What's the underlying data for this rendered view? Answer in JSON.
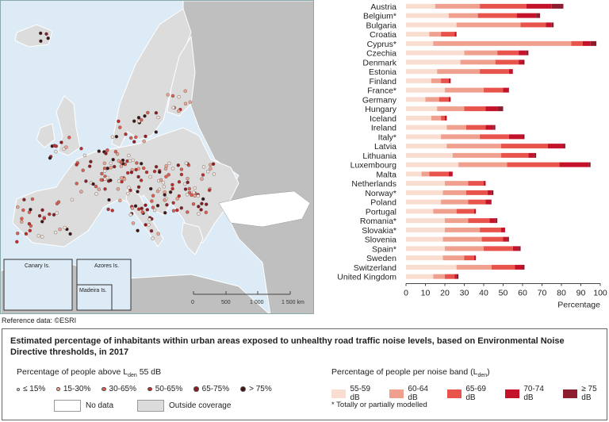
{
  "map": {
    "inset_labels": [
      "Canary Is.",
      "Azores Is.",
      "Madeira Is."
    ],
    "scale_ticks": [
      "0",
      "500",
      "1 000",
      "1 500 km"
    ],
    "reference": "Reference data: ©ESRI",
    "colors": {
      "sea": "#dcebf5",
      "land": "#dcdcdc",
      "outside": "#bfbfbf",
      "nodata": "#ffffff"
    }
  },
  "chart_data": {
    "type": "bar",
    "stacked": true,
    "orientation": "horizontal",
    "categories": [
      "Austria",
      "Belgium*",
      "Bulgaria",
      "Croatia",
      "Cyprus*",
      "Czechia",
      "Denmark",
      "Estonia",
      "Finland",
      "France*",
      "Germany",
      "Hungary",
      "Iceland",
      "Ireland",
      "Italy*",
      "Latvia",
      "Lithuania",
      "Luxembourg",
      "Malta",
      "Netherlands",
      "Norway*",
      "Poland",
      "Portugal",
      "Romania*",
      "Slovakia*",
      "Slovenia",
      "Spain*",
      "Sweden",
      "Switzerland",
      "United Kingdom"
    ],
    "series": [
      {
        "name": "55-59 dB",
        "color": "#f9ddd0",
        "values": [
          15,
          22,
          26,
          12,
          14,
          30,
          28,
          16,
          13,
          20,
          10,
          16,
          13,
          21,
          18,
          21,
          24,
          27,
          8,
          20,
          19,
          18,
          14,
          20,
          20,
          19,
          20,
          19,
          26,
          14
        ]
      },
      {
        "name": "60-64 dB",
        "color": "#f0a08e",
        "values": [
          23,
          15,
          33,
          6,
          71,
          17,
          18,
          22,
          5,
          20,
          7,
          14,
          5,
          10,
          20,
          28,
          25,
          25,
          4,
          12,
          12,
          14,
          12,
          12,
          18,
          20,
          20,
          11,
          18,
          6
        ]
      },
      {
        "name": "65-69 dB",
        "color": "#e8534c",
        "values": [
          24,
          20,
          13,
          7,
          6,
          11,
          12,
          15,
          4,
          10,
          5,
          11,
          2,
          10,
          15,
          24,
          14,
          27,
          10,
          8,
          11,
          9,
          9,
          11,
          11,
          11,
          15,
          5,
          12,
          5
        ]
      },
      {
        "name": "70-74 dB",
        "color": "#c4122a",
        "values": [
          13,
          10,
          3,
          1,
          4,
          4,
          2,
          2,
          1,
          3,
          1,
          6,
          1,
          4,
          7,
          8,
          3,
          15,
          2,
          1,
          2,
          3,
          1,
          3,
          2,
          2,
          3,
          1,
          4,
          1
        ]
      },
      {
        "name": "≥ 75 dB",
        "color": "#8c1d2e",
        "values": [
          6,
          2,
          1,
          0,
          3,
          1,
          1,
          0,
          0,
          0,
          0,
          3,
          0,
          1,
          1,
          1,
          1,
          1,
          0,
          0,
          1,
          0,
          0,
          1,
          0,
          1,
          1,
          0,
          1,
          1
        ]
      }
    ],
    "xlim": [
      0,
      100
    ],
    "xticks": [
      "0",
      "10",
      "20",
      "30",
      "40",
      "50",
      "60",
      "70",
      "80",
      "90",
      "100"
    ],
    "xlabel": "Percentage",
    "grid": false
  },
  "legend": {
    "title": "Estimated percentage of inhabitants within urban areas exposed to unhealthy road traffic noise levels, based on Environmental Noise Directive thresholds, in 2017",
    "left_title_pre": "Percentage of people above L",
    "left_title_sub": "den",
    "left_title_post": " 55 dB",
    "dot_items": [
      {
        "label": "≤ 15%",
        "color": "#f6e3da"
      },
      {
        "label": "15-30%",
        "color": "#efa38f"
      },
      {
        "label": "30-65%",
        "color": "#e25b4f"
      },
      {
        "label": "50-65%",
        "color": "#c22a2a"
      },
      {
        "label": "65-75%",
        "color": "#8b1a22"
      },
      {
        "label": "> 75%",
        "color": "#3c1414"
      }
    ],
    "nodata_label": "No data",
    "outside_label": "Outside coverage",
    "right_title_pre": "Percentage of people per noise band (L",
    "right_title_sub": "den",
    "right_title_post": ")",
    "band_items": [
      "55-59 dB",
      "60-64 dB",
      "65-69 dB",
      "70-74 dB",
      "≥ 75 dB"
    ],
    "note": "* Totally or partially modelled"
  }
}
